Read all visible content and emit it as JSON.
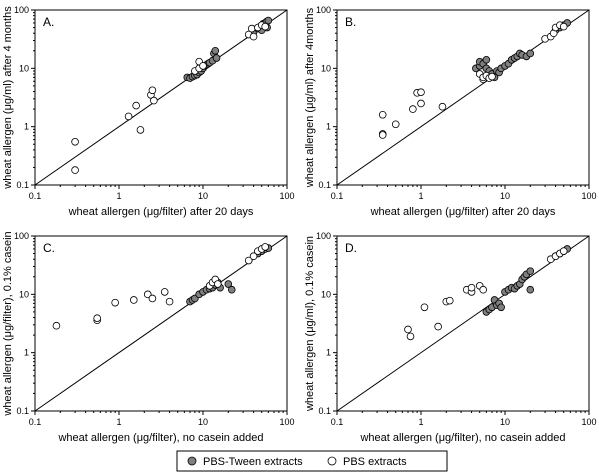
{
  "colors": {
    "pbs_tween": "#808080",
    "pbs": "#ffffff",
    "stroke": "#000000"
  },
  "legend": [
    {
      "name": "PBS-Tween extracts",
      "color": "#808080"
    },
    {
      "name": "PBS extracts",
      "color": "#ffffff"
    }
  ],
  "chart_data": [
    {
      "type": "scatter",
      "panel": "A.",
      "xlabel": "wheat allergen (μg/filter) after 20 days",
      "ylabel": "wheat allergen (μg/ml) after 4 months",
      "xscale": "log",
      "yscale": "log",
      "xlim": [
        0.1,
        100
      ],
      "ylim": [
        0.1,
        100
      ],
      "xticks": [
        "0.1",
        "1",
        "10",
        "100"
      ],
      "yticks": [
        "0.1",
        "1",
        "10",
        "100"
      ],
      "reference_line": "y = x",
      "grid": false,
      "series": [
        {
          "name": "PBS-Tween extracts",
          "points": [
            [
              6.5,
              7
            ],
            [
              7,
              6.8
            ],
            [
              7.5,
              7.2
            ],
            [
              8,
              7.5
            ],
            [
              8.5,
              7.8
            ],
            [
              9,
              8.5
            ],
            [
              9.5,
              9
            ],
            [
              10,
              10
            ],
            [
              10.5,
              11
            ],
            [
              11,
              11.5
            ],
            [
              11.5,
              12
            ],
            [
              12,
              12.5
            ],
            [
              13,
              13.5
            ],
            [
              13.5,
              18
            ],
            [
              14,
              20
            ],
            [
              14.5,
              15
            ],
            [
              40,
              42
            ],
            [
              45,
              48
            ],
            [
              48,
              52
            ],
            [
              50,
              55
            ],
            [
              52,
              58
            ],
            [
              55,
              60
            ],
            [
              57,
              63
            ],
            [
              60,
              66
            ],
            [
              58,
              50
            ],
            [
              50,
              45
            ]
          ]
        },
        {
          "name": "PBS extracts",
          "points": [
            [
              0.3,
              0.55
            ],
            [
              0.3,
              0.18
            ],
            [
              1.3,
              1.5
            ],
            [
              1.6,
              2.3
            ],
            [
              1.8,
              0.88
            ],
            [
              2.4,
              3.5
            ],
            [
              2.5,
              4.2
            ],
            [
              2.6,
              2.8
            ],
            [
              8,
              9
            ],
            [
              9,
              10
            ],
            [
              9,
              13
            ],
            [
              10,
              11
            ],
            [
              35,
              38
            ],
            [
              38,
              48
            ],
            [
              40,
              35
            ],
            [
              45,
              50
            ],
            [
              50,
              55
            ],
            [
              55,
              52
            ]
          ]
        }
      ]
    },
    {
      "type": "scatter",
      "panel": "B.",
      "xlabel": "wheat allergen (μg/filter) after 20 days",
      "ylabel": "wheat allergen (μg/ml) after 4months",
      "xscale": "log",
      "yscale": "log",
      "xlim": [
        0.1,
        100
      ],
      "ylim": [
        0.1,
        100
      ],
      "xticks": [
        "0.1",
        "1",
        "10",
        "100"
      ],
      "yticks": [
        "0.1",
        "1",
        "10",
        "100"
      ],
      "reference_line": "y = x",
      "grid": false,
      "series": [
        {
          "name": "PBS-Tween extracts",
          "points": [
            [
              4.5,
              10
            ],
            [
              5,
              11
            ],
            [
              5,
              13
            ],
            [
              5.5,
              12
            ],
            [
              6,
              14
            ],
            [
              6,
              10
            ],
            [
              6.5,
              9
            ],
            [
              7,
              8
            ],
            [
              7.5,
              7
            ],
            [
              8,
              9
            ],
            [
              8.5,
              8.5
            ],
            [
              9,
              10
            ],
            [
              10,
              11
            ],
            [
              11,
              12
            ],
            [
              12,
              14
            ],
            [
              13,
              15
            ],
            [
              14,
              16
            ],
            [
              15,
              18
            ],
            [
              16,
              17
            ],
            [
              18,
              16
            ],
            [
              20,
              18
            ],
            [
              40,
              45
            ],
            [
              45,
              50
            ],
            [
              50,
              55
            ],
            [
              55,
              60
            ]
          ]
        },
        {
          "name": "PBS extracts",
          "points": [
            [
              0.35,
              1.6
            ],
            [
              0.35,
              0.75
            ],
            [
              0.35,
              0.72
            ],
            [
              0.5,
              1.1
            ],
            [
              0.8,
              2
            ],
            [
              0.9,
              3.8
            ],
            [
              1,
              3.9
            ],
            [
              1,
              2.5
            ],
            [
              1.8,
              2.2
            ],
            [
              5,
              8
            ],
            [
              5.5,
              6.5
            ],
            [
              5.5,
              7
            ],
            [
              6,
              7.5
            ],
            [
              6.5,
              6.8
            ],
            [
              7,
              7.2
            ],
            [
              30,
              32
            ],
            [
              35,
              35
            ],
            [
              38,
              40
            ],
            [
              40,
              50
            ],
            [
              45,
              55
            ],
            [
              50,
              52
            ]
          ]
        }
      ]
    },
    {
      "type": "scatter",
      "panel": "C.",
      "xlabel": "wheat allergen (μg/filter), no casein added",
      "ylabel": "wheat allergen (μg/filter), 0.1% casein",
      "xscale": "log",
      "yscale": "log",
      "xlim": [
        0.1,
        100
      ],
      "ylim": [
        0.1,
        100
      ],
      "xticks": [
        "0.1",
        "1",
        "10",
        "100"
      ],
      "yticks": [
        "0.1",
        "1",
        "10",
        "100"
      ],
      "reference_line": "y = x",
      "grid": false,
      "series": [
        {
          "name": "PBS-Tween extracts",
          "points": [
            [
              7,
              7.5
            ],
            [
              7.5,
              8
            ],
            [
              8,
              8.5
            ],
            [
              9,
              10
            ],
            [
              10,
              11
            ],
            [
              11,
              12
            ],
            [
              12,
              12.5
            ],
            [
              13,
              13
            ],
            [
              14,
              14.5
            ],
            [
              15,
              16
            ],
            [
              16,
              13
            ],
            [
              20,
              15
            ],
            [
              22,
              12
            ],
            [
              45,
              50
            ],
            [
              50,
              55
            ],
            [
              55,
              60
            ],
            [
              60,
              62
            ]
          ]
        },
        {
          "name": "PBS extracts",
          "points": [
            [
              0.18,
              2.9
            ],
            [
              0.55,
              3.6
            ],
            [
              0.55,
              3.9
            ],
            [
              0.9,
              7.2
            ],
            [
              1.5,
              8
            ],
            [
              2.2,
              10
            ],
            [
              2.5,
              8.5
            ],
            [
              3.5,
              11
            ],
            [
              4,
              7.5
            ],
            [
              12,
              14
            ],
            [
              13,
              16
            ],
            [
              14,
              18
            ],
            [
              15,
              15
            ],
            [
              35,
              38
            ],
            [
              40,
              45
            ],
            [
              45,
              55
            ],
            [
              50,
              60
            ],
            [
              55,
              65
            ]
          ]
        }
      ]
    },
    {
      "type": "scatter",
      "panel": "D.",
      "xlabel": "wheat allergen (μg/filter), no casein added",
      "ylabel": "wheat allergen (μg/ml), 0.1% casein",
      "xscale": "log",
      "yscale": "log",
      "xlim": [
        0.1,
        100
      ],
      "ylim": [
        0.1,
        100
      ],
      "xticks": [
        "0.1",
        "1",
        "10",
        "100"
      ],
      "yticks": [
        "0.1",
        "1",
        "10",
        "100"
      ],
      "reference_line": "y = x",
      "grid": false,
      "series": [
        {
          "name": "PBS-Tween extracts",
          "points": [
            [
              6,
              5
            ],
            [
              6.5,
              5.5
            ],
            [
              7,
              6
            ],
            [
              7.5,
              8
            ],
            [
              8,
              6.5
            ],
            [
              8.5,
              7
            ],
            [
              9,
              6
            ],
            [
              10,
              11
            ],
            [
              11,
              12
            ],
            [
              12,
              13
            ],
            [
              13,
              12.5
            ],
            [
              14,
              14
            ],
            [
              15,
              15
            ],
            [
              16,
              18
            ],
            [
              17,
              20
            ],
            [
              18,
              22
            ],
            [
              20,
              25
            ],
            [
              20,
              12
            ],
            [
              40,
              45
            ],
            [
              45,
              50
            ],
            [
              50,
              55
            ],
            [
              55,
              60
            ]
          ]
        },
        {
          "name": "PBS extracts",
          "points": [
            [
              0.7,
              2.5
            ],
            [
              0.75,
              1.9
            ],
            [
              1.1,
              6
            ],
            [
              1.6,
              2.8
            ],
            [
              2,
              7.5
            ],
            [
              2.2,
              7.8
            ],
            [
              3.5,
              12
            ],
            [
              4,
              11
            ],
            [
              4,
              13
            ],
            [
              5,
              14
            ],
            [
              5.5,
              12
            ],
            [
              35,
              40
            ],
            [
              40,
              45
            ],
            [
              45,
              50
            ],
            [
              50,
              55
            ]
          ]
        }
      ]
    }
  ]
}
